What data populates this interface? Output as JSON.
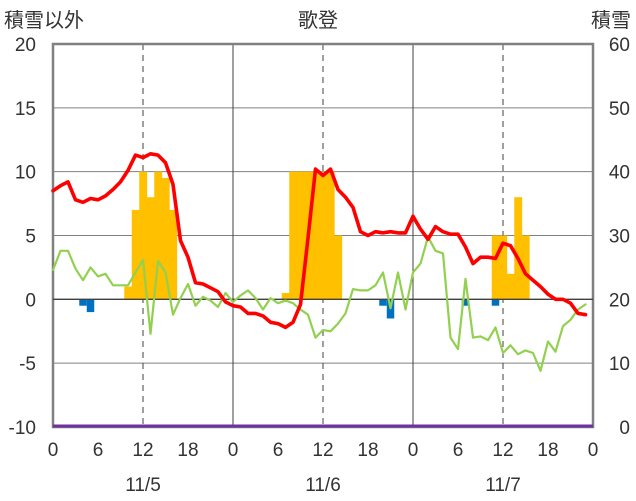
{
  "chart_data": {
    "type": "bar+line",
    "title": "歌登",
    "left_axis_label": "積雪以外",
    "right_axis_label": "積雪",
    "left_ylim": [
      -10,
      20
    ],
    "left_yticks": [
      -10,
      -5,
      0,
      5,
      10,
      15,
      20
    ],
    "right_ylim": [
      0,
      60
    ],
    "right_yticks": [
      0,
      10,
      20,
      30,
      40,
      50,
      60
    ],
    "xlim": [
      0,
      72
    ],
    "x_tick_values": [
      0,
      6,
      12,
      18,
      24,
      30,
      36,
      42,
      48,
      54,
      60,
      66,
      72
    ],
    "x_tick_labels": [
      "0",
      "6",
      "12",
      "18",
      "0",
      "6",
      "12",
      "18",
      "0",
      "6",
      "12",
      "18",
      "0"
    ],
    "date_labels": [
      {
        "x": 12,
        "label": "11/5"
      },
      {
        "x": 36,
        "label": "11/6"
      },
      {
        "x": 60,
        "label": "11/7"
      }
    ],
    "grid": {
      "dashed_vertical_at": [
        12,
        36,
        60
      ],
      "solid_vertical_at": [
        24,
        48
      ],
      "horizontal_at": [
        15,
        10,
        5,
        0,
        -5
      ]
    },
    "colors": {
      "red_line": "#ff0000",
      "green_line": "#92d050",
      "snow_bar": "#ffc000",
      "precip_bar": "#0070c0",
      "bottom_line": "#7030a0",
      "grid": "#808080",
      "frame": "#808080"
    },
    "red_series": {
      "x": [
        0,
        1,
        2,
        3,
        4,
        5,
        6,
        7,
        8,
        9,
        10,
        11,
        12,
        13,
        14,
        15,
        16,
        17,
        18,
        19,
        20,
        21,
        22,
        23,
        24,
        25,
        26,
        27,
        28,
        29,
        30,
        31,
        32,
        33,
        34,
        35,
        36,
        37,
        38,
        39,
        40,
        41,
        42,
        43,
        44,
        45,
        46,
        47,
        48,
        49,
        50,
        51,
        52,
        53,
        54,
        55,
        56,
        57,
        58,
        59,
        60,
        61,
        62,
        63,
        64,
        65,
        66,
        67,
        68,
        69,
        70,
        71
      ],
      "y": [
        8.5,
        8.9,
        9.2,
        7.8,
        7.6,
        7.9,
        7.8,
        8.1,
        8.6,
        9.2,
        10.1,
        11.3,
        11.1,
        11.4,
        11.3,
        10.7,
        9.0,
        4.6,
        3.3,
        1.3,
        1.2,
        0.9,
        0.6,
        -0.2,
        -0.5,
        -0.6,
        -1.1,
        -1.1,
        -1.3,
        -1.8,
        -1.9,
        -2.2,
        -1.8,
        -0.4,
        4.8,
        10.2,
        9.7,
        10.2,
        8.6,
        8.0,
        7.2,
        5.3,
        5.0,
        5.3,
        5.2,
        5.3,
        5.2,
        5.2,
        6.5,
        5.5,
        4.7,
        5.7,
        5.3,
        5.1,
        5.1,
        4.1,
        2.8,
        3.3,
        3.3,
        3.2,
        4.4,
        4.2,
        3.2,
        2.0,
        1.5,
        1.0,
        0.4,
        0.0,
        0.0,
        -0.3,
        -1.1,
        -1.2
      ]
    },
    "green_series": {
      "x": [
        0,
        1,
        2,
        3,
        4,
        5,
        6,
        7,
        8,
        9,
        10,
        11,
        12,
        13,
        14,
        15,
        16,
        17,
        18,
        19,
        20,
        21,
        22,
        23,
        24,
        25,
        26,
        27,
        28,
        29,
        30,
        31,
        32,
        33,
        34,
        35,
        36,
        37,
        38,
        39,
        40,
        41,
        42,
        43,
        44,
        45,
        46,
        47,
        48,
        49,
        50,
        51,
        52,
        53,
        54,
        55,
        56,
        57,
        58,
        59,
        60,
        61,
        62,
        63,
        64,
        65,
        66,
        67,
        68,
        69,
        70,
        71
      ],
      "y": [
        2.3,
        3.8,
        3.8,
        2.4,
        1.5,
        2.5,
        1.8,
        2.0,
        1.1,
        1.1,
        1.1,
        2.1,
        3.1,
        -2.7,
        3.0,
        2.1,
        -1.2,
        0.1,
        1.2,
        -0.5,
        0.2,
        -0.1,
        -0.6,
        0.5,
        -0.2,
        0.3,
        0.7,
        0.1,
        -0.8,
        0.1,
        -0.3,
        -0.1,
        -0.3,
        -0.8,
        -1.2,
        -3.0,
        -2.4,
        -2.5,
        -1.9,
        -1.1,
        0.8,
        0.7,
        0.7,
        1.1,
        2.1,
        -0.7,
        2.1,
        -0.8,
        2.1,
        2.8,
        4.9,
        3.8,
        3.6,
        -3.0,
        -3.9,
        1.6,
        -3.0,
        -2.9,
        -3.2,
        -2.2,
        -4.2,
        -3.6,
        -4.3,
        -4.0,
        -4.2,
        -5.6,
        -3.3,
        -4.1,
        -2.1,
        -1.6,
        -0.8,
        -0.4
      ]
    },
    "snow_bars": {
      "x": [
        10,
        11,
        12,
        13,
        14,
        15,
        16,
        31,
        32,
        33,
        34,
        35,
        36,
        37,
        38,
        59,
        60,
        61,
        62,
        63
      ],
      "values": [
        22,
        34,
        40,
        36,
        40,
        39,
        34,
        21,
        40,
        40,
        40,
        40,
        40,
        40,
        30,
        30,
        30,
        24,
        36,
        30
      ]
    },
    "precip_bars": {
      "x": [
        4,
        5,
        44,
        45,
        55,
        59
      ],
      "values": [
        -0.5,
        -1.0,
        -0.5,
        -1.5,
        -0.5,
        -0.5
      ]
    }
  }
}
